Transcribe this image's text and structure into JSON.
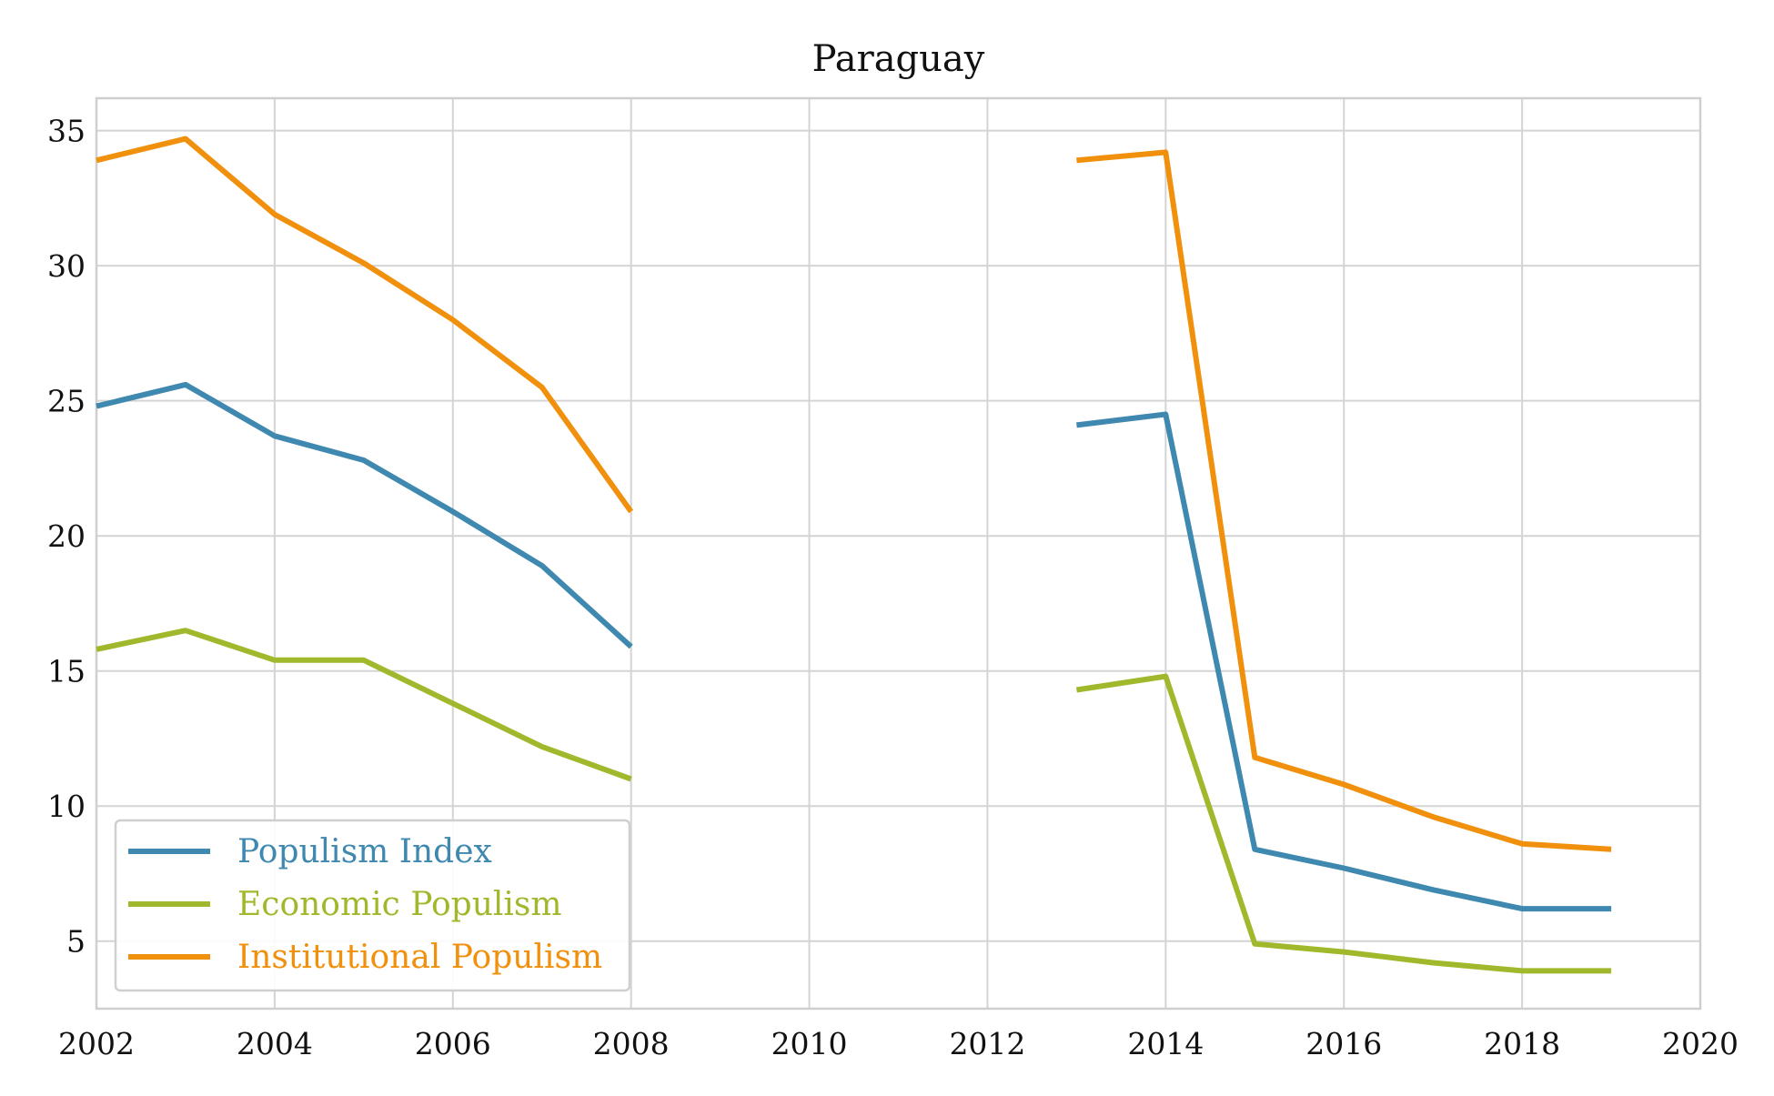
{
  "chart_data": {
    "type": "line",
    "title": "Paraguay",
    "xlabel": "",
    "ylabel": "",
    "xlim": [
      2002,
      2020
    ],
    "ylim": [
      2.5,
      36.2
    ],
    "x_ticks": [
      2002,
      2004,
      2006,
      2008,
      2010,
      2012,
      2014,
      2016,
      2018,
      2020
    ],
    "y_ticks": [
      5,
      10,
      15,
      20,
      25,
      30,
      35
    ],
    "grid": true,
    "legend_position": "lower-left",
    "x": [
      2002,
      2003,
      2004,
      2005,
      2006,
      2007,
      2008,
      2009,
      2010,
      2011,
      2012,
      2013,
      2014,
      2015,
      2016,
      2017,
      2018,
      2019
    ],
    "series": [
      {
        "name": "Populism Index",
        "color": "#3f88b0",
        "values": [
          24.8,
          25.6,
          23.7,
          22.8,
          20.9,
          18.9,
          15.9,
          null,
          null,
          null,
          null,
          24.1,
          24.5,
          8.4,
          7.7,
          6.9,
          6.2,
          6.2
        ]
      },
      {
        "name": "Economic Populism",
        "color": "#a0b92c",
        "values": [
          15.8,
          16.5,
          15.4,
          15.4,
          13.8,
          12.2,
          11.0,
          null,
          null,
          null,
          null,
          14.3,
          14.8,
          4.9,
          4.6,
          4.2,
          3.9,
          3.9
        ]
      },
      {
        "name": "Institutional Populism",
        "color": "#f0900d",
        "values": [
          33.9,
          34.7,
          31.9,
          30.1,
          28.0,
          25.5,
          20.9,
          null,
          null,
          null,
          null,
          33.9,
          34.2,
          11.8,
          10.8,
          9.6,
          8.6,
          8.4
        ]
      }
    ]
  }
}
